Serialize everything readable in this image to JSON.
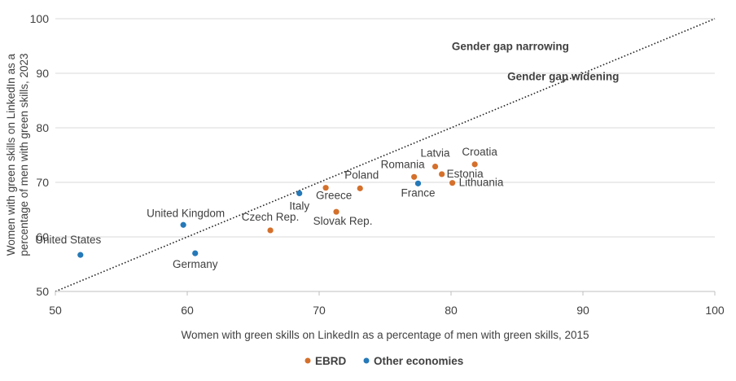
{
  "chart_data": {
    "type": "scatter",
    "xlabel": "Women with green skills on LinkedIn as a percentage of men with green skills, 2015",
    "ylabel_lines": [
      "Women with green skills on LinkedIn as a",
      "percentage of men with green skills, 2023"
    ],
    "xlim": [
      50,
      100
    ],
    "ylim": [
      50,
      100
    ],
    "xticks": [
      "50",
      "60",
      "70",
      "80",
      "90",
      "100"
    ],
    "yticks": [
      "50",
      "60",
      "70",
      "80",
      "90",
      "100"
    ],
    "grid": "horizontal",
    "legend_position": "bottom",
    "reference_line": {
      "style": "dotted",
      "from": [
        50,
        50
      ],
      "to": [
        100,
        100
      ]
    },
    "annotations": [
      {
        "text": "Gender gap narrowing",
        "x": 84.5,
        "y": 95.0
      },
      {
        "text": "Gender gap widening",
        "x": 88.5,
        "y": 89.5
      }
    ],
    "series": [
      {
        "name": "EBRD",
        "color": "#d4702b",
        "points": [
          {
            "label": "Czech Rep.",
            "x": 66.3,
            "y": 61.2
          },
          {
            "label": "Greece",
            "x": 70.5,
            "y": 69.0
          },
          {
            "label": "Slovak Rep.",
            "x": 71.3,
            "y": 64.6
          },
          {
            "label": "Poland",
            "x": 73.1,
            "y": 68.9
          },
          {
            "label": "Romania",
            "x": 77.2,
            "y": 71.0
          },
          {
            "label": "Latvia",
            "x": 78.8,
            "y": 72.9
          },
          {
            "label": "Estonia",
            "x": 79.3,
            "y": 71.5
          },
          {
            "label": "Lithuania",
            "x": 80.1,
            "y": 69.9
          },
          {
            "label": "Croatia",
            "x": 81.8,
            "y": 73.3
          }
        ]
      },
      {
        "name": "Other economies",
        "color": "#2579b8",
        "points": [
          {
            "label": "United States",
            "x": 51.9,
            "y": 56.7
          },
          {
            "label": "United Kingdom",
            "x": 59.7,
            "y": 62.2
          },
          {
            "label": "Germany",
            "x": 60.6,
            "y": 57.0
          },
          {
            "label": "Italy",
            "x": 68.5,
            "y": 68.0
          },
          {
            "label": "France",
            "x": 77.5,
            "y": 69.8
          }
        ]
      }
    ]
  }
}
